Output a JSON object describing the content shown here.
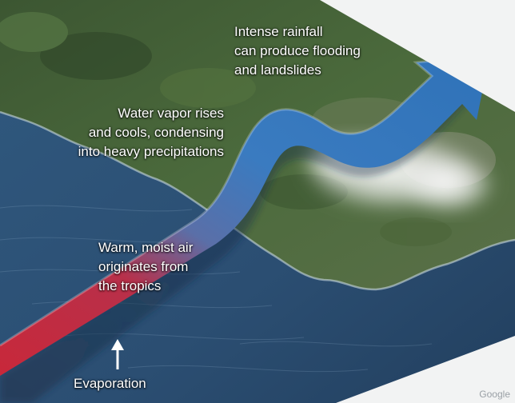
{
  "labels": {
    "rainfall": [
      "Intense rainfall",
      "can produce flooding",
      "and landslides"
    ],
    "vapor": [
      "Water vapor rises",
      "and cools, condensing",
      "into heavy precipitations"
    ],
    "warm_air": [
      "Warm, moist air",
      "originates from",
      "the tropics"
    ],
    "evaporation": "Evaporation"
  },
  "watermark": "Google",
  "colors": {
    "ocean": "#2e5378",
    "land": "#3f5a34",
    "arrow_warm": "#c8283a",
    "arrow_cool": "#3a7bc0",
    "cloud": "#f2f2f2"
  }
}
